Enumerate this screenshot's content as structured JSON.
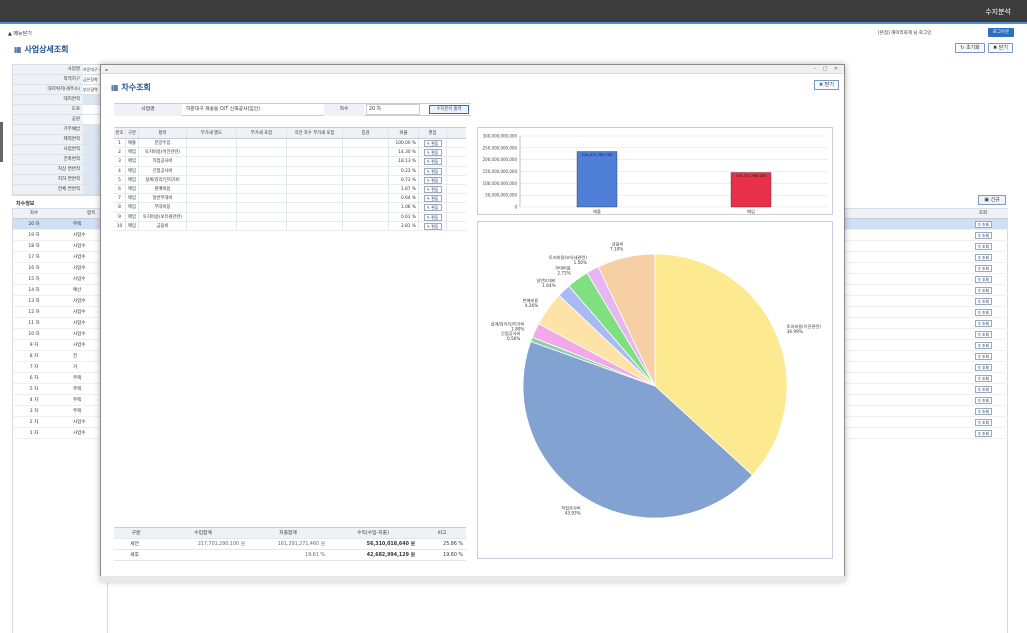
{
  "app": {
    "title": "수지분석"
  },
  "menu": {
    "toggle_label": "▲ 메뉴닫기"
  },
  "user": {
    "line": "[본점] 해아리회계 님 로그인",
    "logout": "로그아웃"
  },
  "page": {
    "title": "사업상세조회",
    "reset_label": "초기화",
    "close_label": "닫기"
  },
  "bg_form": {
    "labels": [
      "사업명",
      "착역지구",
      "대지위치(세주소)",
      "대지면적",
      "도로",
      "공원",
      "기부채납",
      "제척면적",
      "사업면적",
      "건축면적",
      "지상 연면적",
      "지하 연면적",
      "전체 연면적"
    ],
    "values": [
      "하운대구 재승동",
      "금은장착",
      "부산광역"
    ]
  },
  "chasu_label": "차수정보",
  "bg_table": {
    "col1": "차수",
    "col2": "항목",
    "rows": [
      {
        "chasu": "20 차",
        "item": "주택"
      },
      {
        "chasu": "19 차",
        "item": "사업수"
      },
      {
        "chasu": "18 차",
        "item": "사업수"
      },
      {
        "chasu": "17 차",
        "item": "사업수"
      },
      {
        "chasu": "16 차",
        "item": "사업수"
      },
      {
        "chasu": "15 차",
        "item": "사업수"
      },
      {
        "chasu": "14 차",
        "item": "예산"
      },
      {
        "chasu": "13 차",
        "item": "사업수"
      },
      {
        "chasu": "12 차",
        "item": "사업수"
      },
      {
        "chasu": "11 차",
        "item": "사업수"
      },
      {
        "chasu": "10 차",
        "item": "사업수"
      },
      {
        "chasu": "9 차",
        "item": "사업수"
      },
      {
        "chasu": "8 차",
        "item": "전"
      },
      {
        "chasu": "7 차",
        "item": "거"
      },
      {
        "chasu": "6 차",
        "item": "주택"
      },
      {
        "chasu": "5 차",
        "item": "주택"
      },
      {
        "chasu": "4 차",
        "item": "주택"
      },
      {
        "chasu": "3 차",
        "item": "주택"
      },
      {
        "chasu": "2 차",
        "item": "사업수"
      },
      {
        "chasu": "1 차",
        "item": "사업수"
      }
    ]
  },
  "right_panel": {
    "col": "조회",
    "view_label": "조회",
    "new_label": "신규"
  },
  "modal": {
    "title": "차수조회",
    "close_label": "닫기",
    "search": {
      "name_label": "사업명",
      "name_value": "하운대구 재송동 O/T 신축공사(임인)",
      "chasu_label": "차수",
      "chasu_value": "20 차",
      "calc_label": "수지분석 출력"
    },
    "grid": {
      "headers": [
        "번호",
        "구분",
        "항목",
        "부가세 별도",
        "부가세 포함",
        "직전 차수 부가세 포함",
        "증감",
        "비율",
        "편집"
      ],
      "edit_label": "편집",
      "rows": [
        {
          "no": "1",
          "type": "매출",
          "item": "분양수입",
          "ratio": "100.00 %"
        },
        {
          "no": "2",
          "type": "매입",
          "item": "토지비용(이전관련)",
          "ratio": "14.30 %"
        },
        {
          "no": "3",
          "type": "매입",
          "item": "직접공사비",
          "ratio": "18.13 %"
        },
        {
          "no": "4",
          "type": "매입",
          "item": "간접공사비",
          "ratio": "0.23 %"
        },
        {
          "no": "5",
          "type": "매입",
          "item": "설계/감리/인허가비",
          "ratio": "0.73 %"
        },
        {
          "no": "6",
          "type": "매입",
          "item": "판매비용",
          "ratio": "1.67 %"
        },
        {
          "no": "7",
          "type": "매입",
          "item": "일반부대비",
          "ratio": "0.64 %"
        },
        {
          "no": "8",
          "type": "매입",
          "item": "부대비용",
          "ratio": "1.06 %"
        },
        {
          "no": "9",
          "type": "매입",
          "item": "토지비용(보유세관련)",
          "ratio": "0.61 %"
        },
        {
          "no": "10",
          "type": "매입",
          "item": "금융비",
          "ratio": "2.81 %"
        }
      ]
    },
    "summary": {
      "headers": [
        "구분",
        "수입합계",
        "지출합계",
        "수익(수입-지출)",
        "비고"
      ],
      "rows": [
        {
          "type": "세전",
          "income": "217,701,290,100 원",
          "expense": "161,391,271,460 원",
          "profit": "56,310,018,640 원",
          "note": "25.86 %"
        },
        {
          "type": "세후",
          "income": "",
          "expense": "19.61 %",
          "profit": "42,682,994,129 원",
          "note": "19.60 %"
        }
      ]
    }
  },
  "chart_data": [
    {
      "type": "bar",
      "categories": [
        "매출",
        "매입"
      ],
      "values": [
        234472569700,
        145701988000
      ],
      "data_labels": [
        "234,472,569,700",
        "145,701,988,000"
      ],
      "colors": [
        "#4f7fd6",
        "#e8304a"
      ],
      "ylim": [
        0,
        300000000000
      ],
      "yticks": [
        "300,000,000,000",
        "250,000,000,000",
        "200,000,000,000",
        "150,000,000,000",
        "100,000,000,000",
        "50,000,000,000",
        "0"
      ],
      "grid": true
    },
    {
      "type": "pie",
      "slices": [
        {
          "label": "토지비용(이전관련)",
          "pct_label": "36.99%",
          "value": 36.99,
          "color": "#fde98f"
        },
        {
          "label": "직접공사비",
          "pct_label": "43.93%",
          "value": 43.93,
          "color": "#82a2d2"
        },
        {
          "label": "간접공사비",
          "pct_label": "0.56%",
          "value": 0.56,
          "color": "#8fcfb0"
        },
        {
          "label": "설계/감리/인허가비",
          "pct_label": "1.80%",
          "value": 1.8,
          "color": "#f2a9e8"
        },
        {
          "label": "판매비용",
          "pct_label": "4.26%",
          "value": 4.26,
          "color": "#fde3a8"
        },
        {
          "label": "일반부대비",
          "pct_label": "1.64%",
          "value": 1.64,
          "color": "#a8b9f5"
        },
        {
          "label": "부대비용",
          "pct_label": "2.71%",
          "value": 2.71,
          "color": "#7ee07e"
        },
        {
          "label": "토지비용(보유세관련)",
          "pct_label": "1.56%",
          "value": 1.56,
          "color": "#e6b5f2"
        },
        {
          "label": "금융비",
          "pct_label": "7.10%",
          "value": 7.1,
          "color": "#f6cfa4"
        }
      ]
    }
  ]
}
